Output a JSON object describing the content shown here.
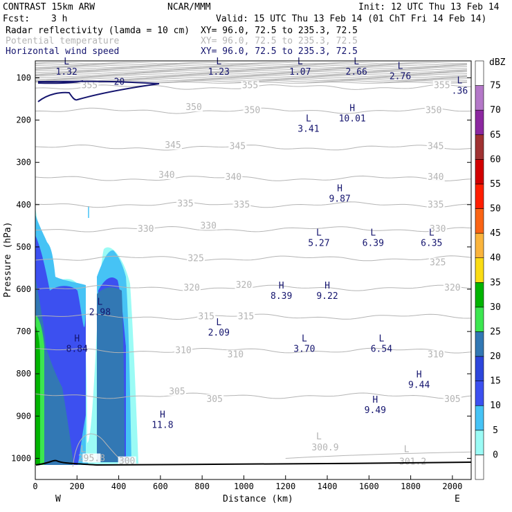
{
  "header": {
    "model": "CONTRAST 15km ARW",
    "center": "NCAR/MMM",
    "init": "Init: 12 UTC Thu 13 Feb 14",
    "fcst_label": "Fcst:",
    "fcst_value": "3 h",
    "valid": "Valid: 15 UTC Thu 13 Feb 14 (01 ChT Fri 14 Feb 14)",
    "fields": [
      {
        "name": "Radar reflectivity (lamda = 10 cm)",
        "xy": "XY=  96.0, 72.5 to 235.3, 72.5",
        "color": "#000000"
      },
      {
        "name": "Potential temperature",
        "xy": "XY=  96.0, 72.5 to 235.3, 72.5",
        "color": "#b4b4b4"
      },
      {
        "name": "Horizontal wind speed",
        "xy": "XY=  96.0, 72.5 to 235.3, 72.5",
        "color": "#14146e"
      }
    ]
  },
  "chart_data": {
    "type": "cross-section",
    "xlabel": "Distance (km)",
    "ylabel": "Pressure (hPa)",
    "xlim": [
      0,
      2090
    ],
    "ylim": [
      1050,
      60
    ],
    "x_ticks": [
      0,
      200,
      400,
      600,
      800,
      1000,
      1200,
      1400,
      1600,
      1800,
      2000
    ],
    "y_ticks": [
      100,
      200,
      300,
      400,
      500,
      600,
      700,
      800,
      900,
      1000
    ],
    "x_end_labels": {
      "left": "W",
      "right": "E"
    },
    "colorbar": {
      "unit": "dBZ",
      "levels": [
        0,
        5,
        10,
        15,
        20,
        25,
        30,
        35,
        40,
        45,
        50,
        55,
        60,
        65,
        70,
        75
      ],
      "colors": [
        "#ffffff",
        "#9bfbf5",
        "#46c3f5",
        "#3c50f0",
        "#2d46dc",
        "#3278b4",
        "#3ce650",
        "#00b400",
        "#fadc14",
        "#fab43c",
        "#fa6414",
        "#ff1e00",
        "#d20000",
        "#a03232",
        "#8c28a0",
        "#b478c8",
        "#ffffff"
      ]
    },
    "isentropes": [
      {
        "label": "355",
        "p": 122
      },
      {
        "label": "350",
        "p": 178
      },
      {
        "label": "345",
        "p": 265
      },
      {
        "label": "340",
        "p": 338
      },
      {
        "label": "335",
        "p": 400
      },
      {
        "label": "330",
        "p": 458
      },
      {
        "label": "325",
        "p": 527
      },
      {
        "label": "320",
        "p": 597
      },
      {
        "label": "315",
        "p": 665
      },
      {
        "label": "310",
        "p": 745
      },
      {
        "label": "305",
        "p": 852
      }
    ],
    "isentrope_labels": [
      {
        "text": "355",
        "x": 260,
        "p": 118
      },
      {
        "text": "355",
        "x": 1030,
        "p": 118
      },
      {
        "text": "355",
        "x": 1950,
        "p": 118
      },
      {
        "text": "350",
        "x": 760,
        "p": 170
      },
      {
        "text": "350",
        "x": 1040,
        "p": 177
      },
      {
        "text": "350",
        "x": 1910,
        "p": 177
      },
      {
        "text": "345",
        "x": 660,
        "p": 260
      },
      {
        "text": "345",
        "x": 970,
        "p": 262
      },
      {
        "text": "345",
        "x": 1920,
        "p": 262
      },
      {
        "text": "340",
        "x": 630,
        "p": 330
      },
      {
        "text": "340",
        "x": 950,
        "p": 335
      },
      {
        "text": "340",
        "x": 1920,
        "p": 335
      },
      {
        "text": "335",
        "x": 720,
        "p": 398
      },
      {
        "text": "335",
        "x": 990,
        "p": 400
      },
      {
        "text": "335",
        "x": 1920,
        "p": 400
      },
      {
        "text": "330",
        "x": 530,
        "p": 458
      },
      {
        "text": "330",
        "x": 830,
        "p": 450
      },
      {
        "text": "330",
        "x": 1930,
        "p": 458
      },
      {
        "text": "325",
        "x": 770,
        "p": 527
      },
      {
        "text": "325",
        "x": 1930,
        "p": 537
      },
      {
        "text": "320",
        "x": 750,
        "p": 597
      },
      {
        "text": "320",
        "x": 1000,
        "p": 590
      },
      {
        "text": "320",
        "x": 2000,
        "p": 597
      },
      {
        "text": "315",
        "x": 820,
        "p": 665
      },
      {
        "text": "315",
        "x": 1010,
        "p": 665
      },
      {
        "text": "310",
        "x": 710,
        "p": 745
      },
      {
        "text": "310",
        "x": 960,
        "p": 755
      },
      {
        "text": "310",
        "x": 1920,
        "p": 755
      },
      {
        "text": "305",
        "x": 680,
        "p": 842
      },
      {
        "text": "305",
        "x": 860,
        "p": 860
      },
      {
        "text": "305",
        "x": 2000,
        "p": 860
      },
      {
        "text": "295.8",
        "x": 270,
        "p": 1000
      },
      {
        "text": "300",
        "x": 440,
        "p": 1007
      },
      {
        "text": "300.9",
        "x": 1390,
        "p": 975
      },
      {
        "text": "301.2",
        "x": 1810,
        "p": 1008
      }
    ],
    "potential_temperature_extrema": [
      {
        "type": "L",
        "value": "",
        "x": 230,
        "p": 985
      },
      {
        "type": "L",
        "value": "",
        "x": 1360,
        "p": 955
      },
      {
        "type": "L",
        "value": "",
        "x": 1780,
        "p": 985
      }
    ],
    "wind_extrema": [
      {
        "type": "L",
        "value": "1.32",
        "x": 150,
        "p": 75
      },
      {
        "type": "L",
        "value": "1.23",
        "x": 880,
        "p": 75
      },
      {
        "type": "L",
        "value": "1.07",
        "x": 1270,
        "p": 75
      },
      {
        "type": "L",
        "value": "2.66",
        "x": 1540,
        "p": 75
      },
      {
        "type": "L",
        "value": "2.76",
        "x": 1750,
        "p": 85
      },
      {
        "type": "L",
        "value": ".36",
        "x": 2035,
        "p": 120
      },
      {
        "type": "H",
        "value": "10.01",
        "x": 1520,
        "p": 185
      },
      {
        "type": "L",
        "value": "3.41",
        "x": 1310,
        "p": 210
      },
      {
        "type": "H",
        "value": "9.87",
        "x": 1460,
        "p": 375
      },
      {
        "type": "L",
        "value": "5.27",
        "x": 1360,
        "p": 480
      },
      {
        "type": "L",
        "value": "6.39",
        "x": 1620,
        "p": 480
      },
      {
        "type": "L",
        "value": "6.35",
        "x": 1900,
        "p": 480
      },
      {
        "type": "H",
        "value": "8.39",
        "x": 1180,
        "p": 605
      },
      {
        "type": "H",
        "value": "9.22",
        "x": 1400,
        "p": 605
      },
      {
        "type": "L",
        "value": "2.98",
        "x": 310,
        "p": 643
      },
      {
        "type": "L",
        "value": "2.09",
        "x": 880,
        "p": 692
      },
      {
        "type": "H",
        "value": "8.84",
        "x": 200,
        "p": 730
      },
      {
        "type": "L",
        "value": "3.70",
        "x": 1290,
        "p": 730
      },
      {
        "type": "L",
        "value": "6.54",
        "x": 1660,
        "p": 730
      },
      {
        "type": "H",
        "value": "9.44",
        "x": 1840,
        "p": 815
      },
      {
        "type": "H",
        "value": "9.49",
        "x": 1630,
        "p": 875
      },
      {
        "type": "H",
        "value": "11.8",
        "x": 610,
        "p": 910
      }
    ],
    "wind_contour_label": {
      "text": "20",
      "x": 410,
      "p": 110
    }
  }
}
